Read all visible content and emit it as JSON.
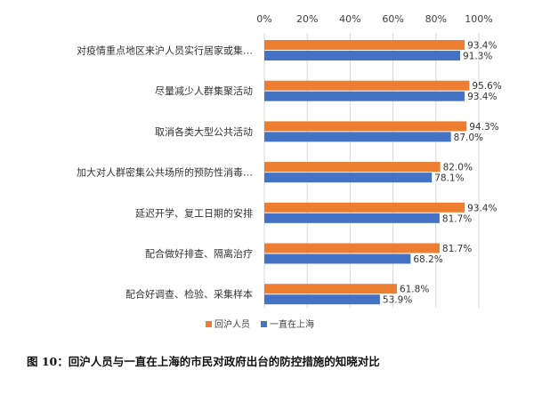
{
  "chart_data": {
    "type": "bar",
    "orientation": "horizontal",
    "categories": [
      "对疫情重点地区来沪人员实行居家或集…",
      "尽量减少人群集聚活动",
      "取消各类大型公共活动",
      "加大对人群密集公共场所的预防性消毒…",
      "延迟开学、复工日期的安排",
      "配合做好排查、隔离治疗",
      "配合好调查、检验、采集样本"
    ],
    "series": [
      {
        "name": "回沪人员",
        "values": [
          93.4,
          95.6,
          94.3,
          82.0,
          93.4,
          81.7,
          61.8
        ],
        "labels": [
          "93.4%",
          "95.6%",
          "94.3%",
          "82.0%",
          "93.4%",
          "81.7%",
          "61.8%"
        ],
        "color": "#ED7D31"
      },
      {
        "name": "一直在上海",
        "values": [
          91.3,
          93.4,
          87.0,
          78.1,
          81.7,
          68.2,
          53.9
        ],
        "labels": [
          "91.3%",
          "93.4%",
          "87.0%",
          "78.1%",
          "81.7%",
          "68.2%",
          "53.9%"
        ],
        "color": "#4472C4"
      }
    ],
    "xlim": [
      0,
      100
    ],
    "xticks": [
      "0%",
      "20%",
      "40%",
      "60%",
      "80%",
      "100%"
    ],
    "axis_position": "top",
    "grid": true,
    "legend_position": "bottom"
  },
  "caption": "图 10：回沪人员与一直在上海的市民对政府出台的防控措施的知晓对比"
}
